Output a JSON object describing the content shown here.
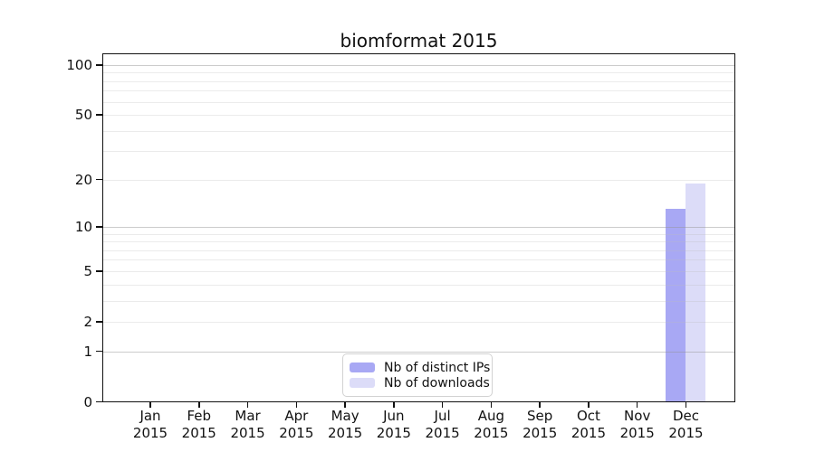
{
  "title": "biomformat 2015",
  "chart_data": {
    "type": "bar",
    "title": "biomformat 2015",
    "categories": [
      "Jan",
      "Feb",
      "Mar",
      "Apr",
      "May",
      "Jun",
      "Jul",
      "Aug",
      "Sep",
      "Oct",
      "Nov",
      "Dec"
    ],
    "category_year": "2015",
    "series": [
      {
        "name": "Nb of distinct IPs",
        "color": "#a8a8f4",
        "values": [
          0,
          0,
          0,
          0,
          0,
          0,
          0,
          0,
          0,
          0,
          0,
          13
        ]
      },
      {
        "name": "Nb of downloads",
        "color": "#dcdcf8",
        "values": [
          0,
          0,
          0,
          0,
          0,
          0,
          0,
          0,
          0,
          0,
          0,
          19
        ]
      }
    ],
    "y_axis": {
      "scale": "log10(1+y)",
      "ticks": [
        0,
        1,
        2,
        5,
        10,
        20,
        50,
        100
      ],
      "major_gridlines": [
        1,
        10,
        100
      ],
      "minor_gridlines": [
        2,
        3,
        4,
        5,
        6,
        7,
        8,
        9,
        20,
        30,
        40,
        50,
        60,
        70,
        80,
        90
      ],
      "range": [
        0,
        117
      ]
    },
    "xlabel": "",
    "ylabel": "",
    "grid": true,
    "grid_over_bars": true,
    "legend_position": "bottom-center"
  },
  "colors": {
    "background": "#ffffff",
    "axis": "#111111",
    "tick_text": "#111111",
    "bar_distinct_ips": "#a8a8f4",
    "bar_downloads": "#dcdcf8",
    "legend_border": "#d2d2d2"
  }
}
